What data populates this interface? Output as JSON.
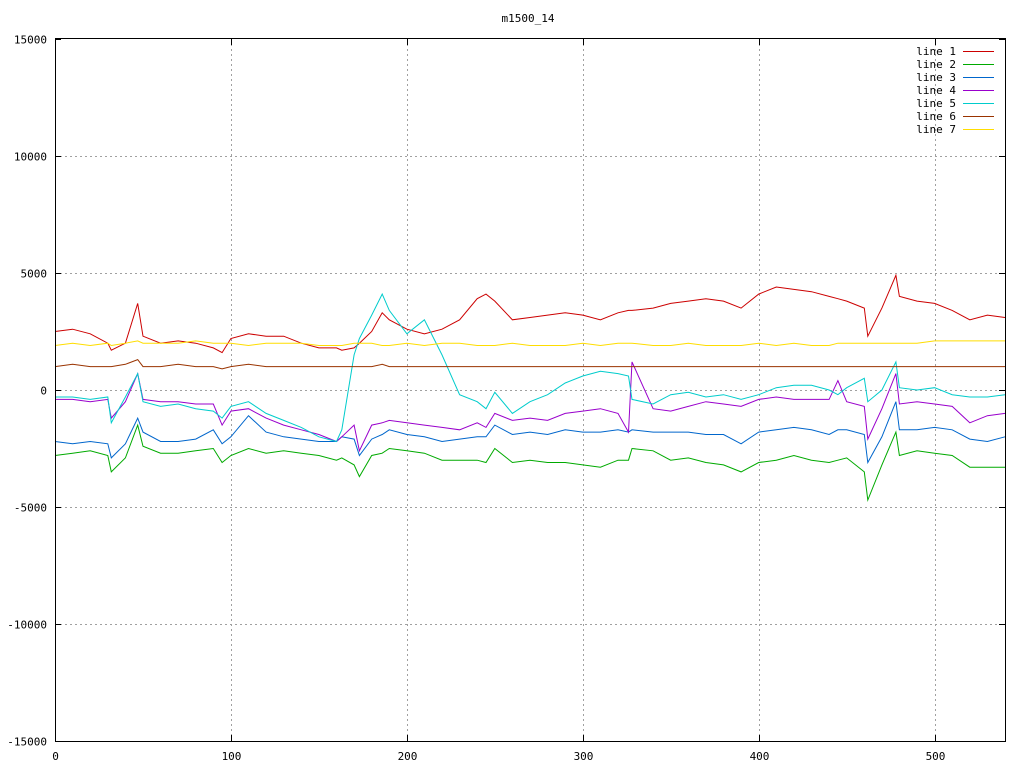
{
  "chart_data": {
    "type": "line",
    "title": "m1500_14",
    "xlabel": "",
    "ylabel": "",
    "xlim": [
      0,
      540
    ],
    "ylim": [
      -15000,
      15000
    ],
    "x_ticks": [
      0,
      100,
      200,
      300,
      400,
      500
    ],
    "y_ticks": [
      -15000,
      -10000,
      -5000,
      0,
      5000,
      10000,
      15000
    ],
    "grid": true,
    "legend_position": "top-right",
    "x": [
      0,
      10,
      20,
      30,
      32,
      40,
      47,
      50,
      60,
      70,
      80,
      90,
      95,
      100,
      110,
      120,
      130,
      140,
      150,
      160,
      163,
      170,
      173,
      180,
      186,
      190,
      200,
      210,
      220,
      230,
      240,
      245,
      250,
      260,
      270,
      280,
      290,
      300,
      310,
      320,
      326,
      328,
      340,
      350,
      360,
      370,
      380,
      390,
      400,
      410,
      420,
      430,
      440,
      445,
      450,
      460,
      462,
      470,
      478,
      480,
      490,
      500,
      510,
      520,
      530,
      540
    ],
    "series": [
      {
        "name": "line 1",
        "color": "#cc0000",
        "values": [
          2500,
          2600,
          2400,
          2000,
          1700,
          2000,
          3700,
          2300,
          2000,
          2100,
          2000,
          1800,
          1600,
          2200,
          2400,
          2300,
          2300,
          2000,
          1800,
          1800,
          1700,
          1800,
          2000,
          2500,
          3300,
          3000,
          2600,
          2400,
          2600,
          3000,
          3900,
          4100,
          3800,
          3000,
          3100,
          3200,
          3300,
          3200,
          3000,
          3300,
          3400,
          3400,
          3500,
          3700,
          3800,
          3900,
          3800,
          3500,
          4100,
          4400,
          4300,
          4200,
          4000,
          3900,
          3800,
          3500,
          2300,
          3500,
          4900,
          4000,
          3800,
          3700,
          3400,
          3000,
          3200,
          3100
        ]
      },
      {
        "name": "line 2",
        "color": "#00aa00",
        "values": [
          -2800,
          -2700,
          -2600,
          -2800,
          -3500,
          -2900,
          -1500,
          -2400,
          -2700,
          -2700,
          -2600,
          -2500,
          -3100,
          -2800,
          -2500,
          -2700,
          -2600,
          -2700,
          -2800,
          -3000,
          -2900,
          -3200,
          -3700,
          -2800,
          -2700,
          -2500,
          -2600,
          -2700,
          -3000,
          -3000,
          -3000,
          -3100,
          -2500,
          -3100,
          -3000,
          -3100,
          -3100,
          -3200,
          -3300,
          -3000,
          -3000,
          -2500,
          -2600,
          -3000,
          -2900,
          -3100,
          -3200,
          -3500,
          -3100,
          -3000,
          -2800,
          -3000,
          -3100,
          -3000,
          -2900,
          -3500,
          -4700,
          -3200,
          -1800,
          -2800,
          -2600,
          -2700,
          -2800,
          -3300,
          -3300,
          -3300
        ]
      },
      {
        "name": "line 3",
        "color": "#0066cc",
        "values": [
          -2200,
          -2300,
          -2200,
          -2300,
          -2900,
          -2300,
          -1200,
          -1800,
          -2200,
          -2200,
          -2100,
          -1700,
          -2300,
          -2000,
          -1100,
          -1800,
          -2000,
          -2100,
          -2200,
          -2200,
          -2000,
          -2100,
          -2800,
          -2100,
          -1900,
          -1700,
          -1900,
          -2000,
          -2200,
          -2100,
          -2000,
          -2000,
          -1500,
          -1900,
          -1800,
          -1900,
          -1700,
          -1800,
          -1800,
          -1700,
          -1800,
          -1700,
          -1800,
          -1800,
          -1800,
          -1900,
          -1900,
          -2300,
          -1800,
          -1700,
          -1600,
          -1700,
          -1900,
          -1700,
          -1700,
          -1900,
          -3100,
          -2000,
          -500,
          -1700,
          -1700,
          -1600,
          -1700,
          -2100,
          -2200,
          -2000
        ]
      },
      {
        "name": "line 4",
        "color": "#9900cc",
        "values": [
          -400,
          -400,
          -500,
          -400,
          -1200,
          -500,
          700,
          -400,
          -500,
          -500,
          -600,
          -600,
          -1500,
          -900,
          -800,
          -1200,
          -1500,
          -1700,
          -1900,
          -2200,
          -2000,
          -1500,
          -2600,
          -1500,
          -1400,
          -1300,
          -1400,
          -1500,
          -1600,
          -1700,
          -1400,
          -1600,
          -1000,
          -1300,
          -1200,
          -1300,
          -1000,
          -900,
          -800,
          -1000,
          -1800,
          1200,
          -800,
          -900,
          -700,
          -500,
          -600,
          -700,
          -400,
          -300,
          -400,
          -400,
          -400,
          400,
          -500,
          -700,
          -2100,
          -800,
          700,
          -600,
          -500,
          -600,
          -700,
          -1400,
          -1100,
          -1000
        ]
      },
      {
        "name": "line 5",
        "color": "#00cccc",
        "values": [
          -300,
          -300,
          -400,
          -300,
          -1400,
          -300,
          700,
          -500,
          -700,
          -600,
          -800,
          -900,
          -1200,
          -700,
          -500,
          -1000,
          -1300,
          -1600,
          -2000,
          -2200,
          -1700,
          1500,
          2200,
          3200,
          4100,
          3400,
          2400,
          3000,
          1500,
          -200,
          -500,
          -800,
          -100,
          -1000,
          -500,
          -200,
          300,
          600,
          800,
          700,
          600,
          -400,
          -600,
          -200,
          -100,
          -300,
          -200,
          -400,
          -200,
          100,
          200,
          200,
          0,
          -200,
          100,
          500,
          -500,
          0,
          1200,
          100,
          0,
          100,
          -200,
          -300,
          -300,
          -200
        ]
      },
      {
        "name": "line 6",
        "color": "#993300",
        "values": [
          1000,
          1100,
          1000,
          1000,
          1000,
          1100,
          1300,
          1000,
          1000,
          1100,
          1000,
          1000,
          900,
          1000,
          1100,
          1000,
          1000,
          1000,
          1000,
          1000,
          1000,
          1000,
          1000,
          1000,
          1100,
          1000,
          1000,
          1000,
          1000,
          1000,
          1000,
          1000,
          1000,
          1000,
          1000,
          1000,
          1000,
          1000,
          1000,
          1000,
          1000,
          1000,
          1000,
          1000,
          1000,
          1000,
          1000,
          1000,
          1000,
          1000,
          1000,
          1000,
          1000,
          1000,
          1000,
          1000,
          1000,
          1000,
          1000,
          1000,
          1000,
          1000,
          1000,
          1000,
          1000,
          1000
        ]
      },
      {
        "name": "line 7",
        "color": "#ffdd00",
        "values": [
          1900,
          2000,
          1900,
          2000,
          1900,
          2000,
          2100,
          2000,
          2000,
          2000,
          2100,
          2000,
          2000,
          2000,
          1900,
          2000,
          2000,
          2000,
          1900,
          1900,
          1900,
          2000,
          2000,
          2000,
          1900,
          1900,
          2000,
          1900,
          2000,
          2000,
          1900,
          1900,
          1900,
          2000,
          1900,
          1900,
          1900,
          2000,
          1900,
          2000,
          2000,
          2000,
          1900,
          1900,
          2000,
          1900,
          1900,
          1900,
          2000,
          1900,
          2000,
          1900,
          1900,
          2000,
          2000,
          2000,
          2000,
          2000,
          2000,
          2000,
          2000,
          2100,
          2100,
          2100,
          2100,
          2100
        ]
      }
    ]
  }
}
